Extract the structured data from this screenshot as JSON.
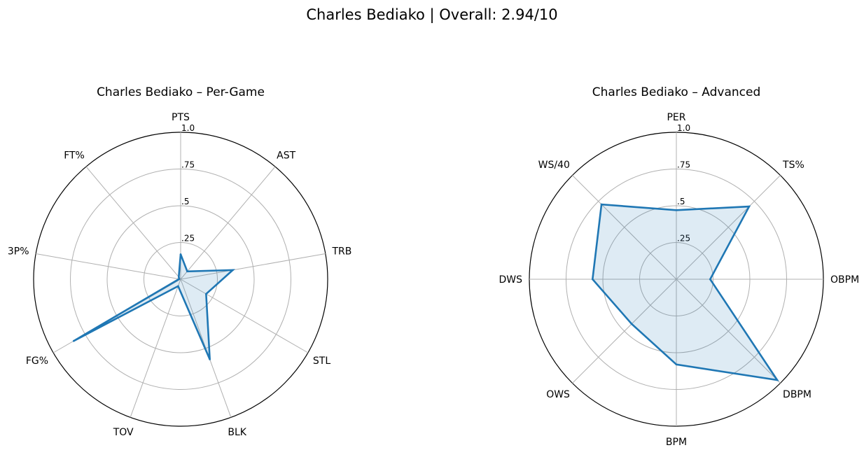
{
  "suptitle": "Charles Bediako | Overall: 2.94/10",
  "chart_data": [
    {
      "type": "radar",
      "title": "Charles Bediako – Per-Game",
      "categories": [
        "PTS",
        "AST",
        "TRB",
        "STL",
        "BLK",
        "TOV",
        "FG%",
        "3P%",
        "FT%"
      ],
      "values": [
        0.17,
        0.07,
        0.36,
        0.2,
        0.58,
        0.05,
        0.84,
        0.01,
        0.02
      ],
      "rlim": [
        0,
        1
      ],
      "rticks": [
        ".25",
        ".5",
        ".75",
        "1.0"
      ],
      "grid": true,
      "color": "#1f77b4",
      "fill_color": "#1f77b4"
    },
    {
      "type": "radar",
      "title": "Charles Bediako – Advanced",
      "categories": [
        "PER",
        "TS%",
        "OBPM",
        "DBPM",
        "BPM",
        "OWS",
        "DWS",
        "WS/40"
      ],
      "values": [
        0.47,
        0.7,
        0.23,
        0.97,
        0.58,
        0.43,
        0.57,
        0.72
      ],
      "rlim": [
        0,
        1
      ],
      "rticks": [
        ".25",
        ".5",
        ".75",
        "1.0"
      ],
      "grid": true,
      "color": "#1f77b4",
      "fill_color": "#1f77b4"
    }
  ]
}
